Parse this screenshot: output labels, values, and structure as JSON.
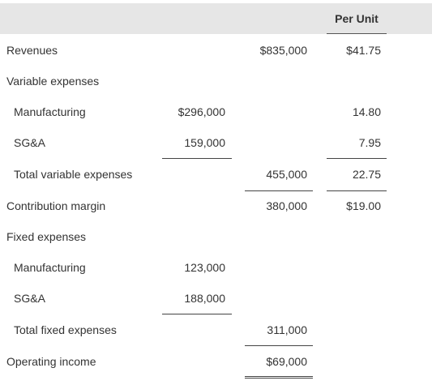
{
  "header": {
    "per_unit": "Per Unit"
  },
  "rows": [
    {
      "label": "Revenues",
      "c1": "",
      "c2": "$835,000",
      "c3": "$41.75"
    },
    {
      "label": "Variable expenses",
      "c1": "",
      "c2": "",
      "c3": ""
    },
    {
      "label": "Manufacturing",
      "c1": "$296,000",
      "c2": "",
      "c3": "14.80"
    },
    {
      "label": "SG&A",
      "c1": "159,000",
      "c2": "",
      "c3": "7.95"
    },
    {
      "label": "Total variable expenses",
      "c1": "",
      "c2": "455,000",
      "c3": "22.75"
    },
    {
      "label": "Contribution margin",
      "c1": "",
      "c2": "380,000",
      "c3": "$19.00"
    },
    {
      "label": "Fixed expenses",
      "c1": "",
      "c2": "",
      "c3": ""
    },
    {
      "label": "Manufacturing",
      "c1": "123,000",
      "c2": "",
      "c3": ""
    },
    {
      "label": "SG&A",
      "c1": "188,000",
      "c2": "",
      "c3": ""
    },
    {
      "label": "Total fixed expenses",
      "c1": "",
      "c2": "311,000",
      "c3": ""
    },
    {
      "label": "Operating income",
      "c1": "",
      "c2": "$69,000",
      "c3": ""
    }
  ]
}
